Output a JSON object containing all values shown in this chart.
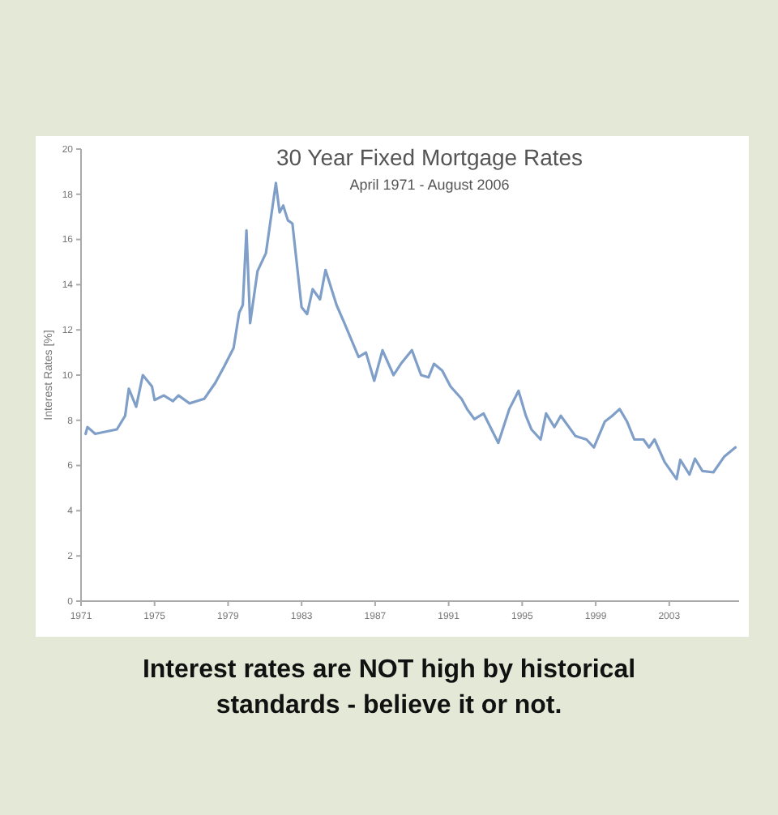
{
  "chart_data": {
    "type": "line",
    "title": "30 Year Fixed Mortgage Rates",
    "subtitle": "April 1971 - August 2006",
    "ylabel": "Interest Rates [%]",
    "annotations": [
      "Interest rates are NOT high by historical standards - believe it or not."
    ],
    "xlim": [
      1971,
      2006.8
    ],
    "xticks": [
      1971,
      1975,
      1979,
      1983,
      1987,
      1991,
      1995,
      1999,
      2003
    ],
    "ylim": [
      0,
      20
    ],
    "yticks": [
      0,
      2,
      4,
      6,
      8,
      10,
      12,
      14,
      16,
      18,
      20
    ],
    "marker": "none",
    "line_style": "solid",
    "series": [
      {
        "color": "#7f9fc8",
        "x": [
          1971.25,
          1971.35,
          1971.77,
          1972.95,
          1973.4,
          1973.6,
          1974.0,
          1974.36,
          1974.86,
          1975.0,
          1975.5,
          1976.0,
          1976.3,
          1976.9,
          1977.7,
          1978.3,
          1978.8,
          1979.3,
          1979.6,
          1979.8,
          1980.0,
          1980.2,
          1980.6,
          1981.06,
          1981.6,
          1981.8,
          1982.0,
          1982.25,
          1982.5,
          1983.0,
          1983.3,
          1983.6,
          1984.0,
          1984.3,
          1984.9,
          1985.3,
          1986.1,
          1986.5,
          1986.95,
          1987.4,
          1988.0,
          1988.4,
          1989.0,
          1989.5,
          1989.9,
          1990.2,
          1990.65,
          1991.1,
          1991.7,
          1992.0,
          1992.4,
          1992.9,
          1993.7,
          1994.3,
          1994.8,
          1995.2,
          1995.5,
          1996.0,
          1996.3,
          1996.75,
          1997.1,
          1997.9,
          1998.5,
          1998.9,
          1999.5,
          1999.9,
          2000.3,
          2000.7,
          2001.1,
          2001.6,
          2001.9,
          2002.2,
          2002.75,
          2003.4,
          2003.6,
          2004.1,
          2004.4,
          2004.8,
          2005.4,
          2006.0,
          2006.6
        ],
        "values": [
          7.4,
          7.7,
          7.4,
          7.6,
          8.2,
          9.4,
          8.6,
          10.0,
          9.5,
          8.9,
          9.1,
          8.85,
          9.1,
          8.75,
          8.95,
          9.65,
          10.4,
          11.2,
          12.75,
          13.1,
          16.4,
          12.3,
          14.6,
          15.4,
          18.5,
          17.2,
          17.5,
          16.85,
          16.7,
          13.0,
          12.7,
          13.8,
          13.35,
          14.65,
          13.1,
          12.35,
          10.8,
          11.0,
          9.75,
          11.1,
          10.0,
          10.5,
          11.1,
          10.0,
          9.9,
          10.5,
          10.2,
          9.5,
          8.95,
          8.5,
          8.05,
          8.3,
          7.0,
          8.5,
          9.3,
          8.2,
          7.6,
          7.15,
          8.3,
          7.7,
          8.2,
          7.3,
          7.15,
          6.8,
          7.95,
          8.2,
          8.5,
          7.95,
          7.15,
          7.15,
          6.8,
          7.15,
          6.15,
          5.4,
          6.25,
          5.6,
          6.3,
          5.76,
          5.7,
          6.4,
          6.8
        ]
      }
    ]
  }
}
